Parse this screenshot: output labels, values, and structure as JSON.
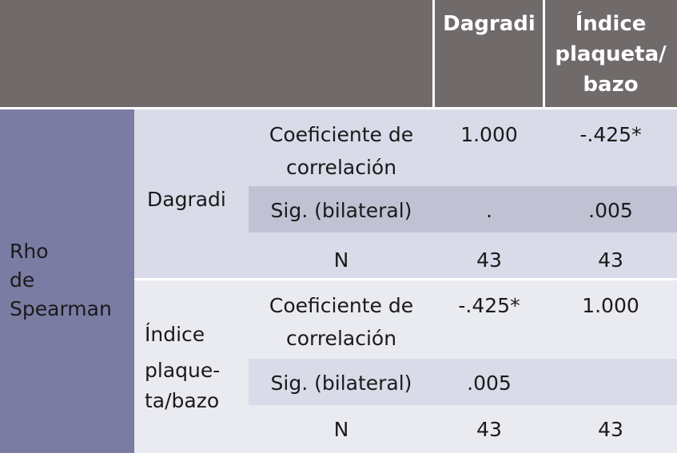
{
  "header": {
    "col1": "Dagradi",
    "col2_lines": [
      "Índice",
      "plaqueta/",
      "bazo"
    ]
  },
  "row_group": {
    "label_lines": [
      "Rho",
      "de",
      "Spearman"
    ]
  },
  "variables": [
    {
      "name_lines": [
        "Dagradi"
      ],
      "rows": [
        {
          "label_lines": [
            "Coeficiente de",
            "correlación"
          ],
          "v1": "1.000",
          "v2": "-.425*"
        },
        {
          "label_lines": [
            "Sig. (bilateral)"
          ],
          "v1": ".",
          "v2": ".005"
        },
        {
          "label_lines": [
            "N"
          ],
          "v1": "43",
          "v2": "43"
        }
      ]
    },
    {
      "name_lines": [
        "Índice",
        "plaque-",
        "ta/bazo"
      ],
      "rows": [
        {
          "label_lines": [
            "Coeficiente de",
            "correlación"
          ],
          "v1": "-.425*",
          "v2": "1.000"
        },
        {
          "label_lines": [
            "Sig. (bilateral)"
          ],
          "v1": ".005",
          "v2": ""
        },
        {
          "label_lines": [
            "N"
          ],
          "v1": "43",
          "v2": "43"
        }
      ]
    }
  ]
}
